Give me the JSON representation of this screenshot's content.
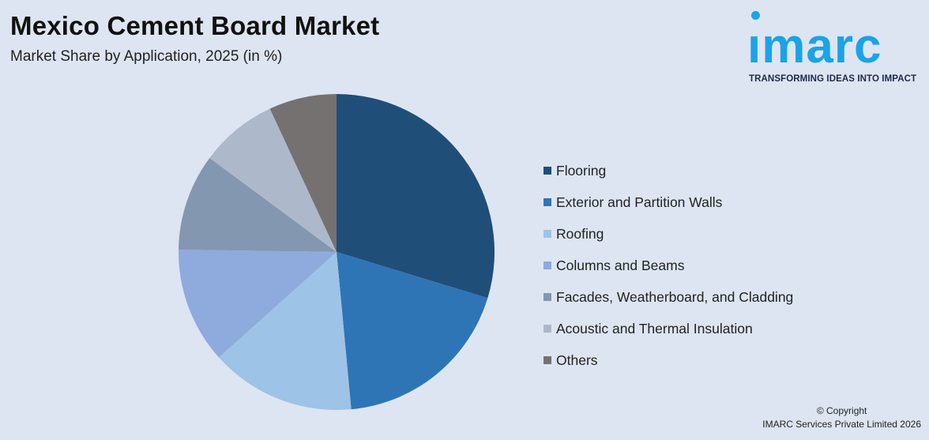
{
  "header": {
    "title": "Mexico Cement Board Market",
    "subtitle": "Market Share by Application, 2025 (in %)"
  },
  "logo": {
    "word": "imarc",
    "tagline": "TRANSFORMING IDEAS INTO IMPACT",
    "color": "#1aa3e8"
  },
  "chart_data": {
    "type": "pie",
    "title": "Mexico Cement Board Market",
    "subtitle": "Market Share by Application, 2025 (in %)",
    "start_angle_deg": 0,
    "direction": "clockwise",
    "legend_position": "right",
    "slices": [
      {
        "label": "Flooring",
        "value": 30,
        "color": "#1f4e79"
      },
      {
        "label": "Exterior and Partition Walls",
        "value": 19,
        "color": "#2e75b6"
      },
      {
        "label": "Roofing",
        "value": 15,
        "color": "#9dc3e6"
      },
      {
        "label": "Columns and Beams",
        "value": 12,
        "color": "#8faadc"
      },
      {
        "label": "Facades, Weatherboard, and Cladding",
        "value": 10,
        "color": "#8497b0"
      },
      {
        "label": "Acoustic and Thermal Insulation",
        "value": 8,
        "color": "#adb9ca"
      },
      {
        "label": "Others",
        "value": 7,
        "color": "#767171"
      }
    ]
  },
  "footer": {
    "copyright_line1": "© Copyright",
    "copyright_line2": "IMARC Services Private Limited 2026"
  }
}
